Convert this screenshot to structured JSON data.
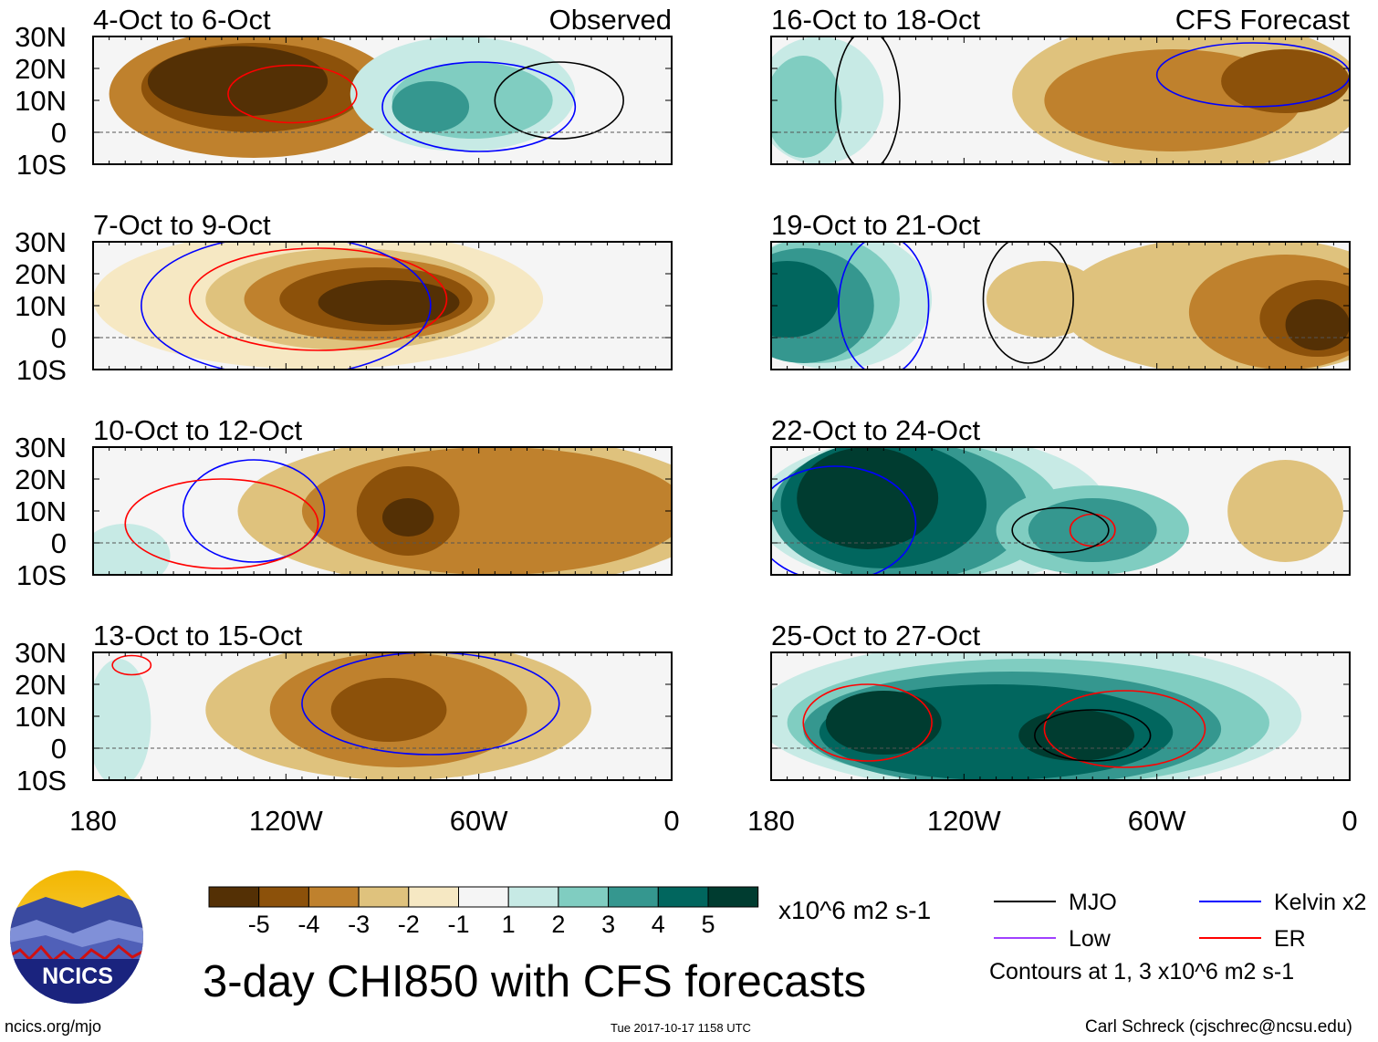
{
  "chart_data": {
    "type": "heatmap",
    "title": "3-day CHI850 with CFS forecasts",
    "units": "x10^6 m2 s-1",
    "column_labels": [
      "Observed",
      "CFS Forecast"
    ],
    "lat_ticks": [
      "30N",
      "20N",
      "10N",
      "0",
      "10S"
    ],
    "lon_ticks": [
      "180",
      "120W",
      "60W",
      "0"
    ],
    "lat_range": [
      -10,
      30
    ],
    "lon_range_west": [
      180,
      0
    ],
    "colorbar": {
      "ticks": [
        "-5",
        "-4",
        "-3",
        "-2",
        "-1",
        "1",
        "2",
        "3",
        "4",
        "5"
      ],
      "colors": [
        "#543005",
        "#8c510a",
        "#bf812d",
        "#dfc27d",
        "#f6e8c3",
        "#f5f5f5",
        "#c7eae5",
        "#80cdc1",
        "#35978f",
        "#01665e",
        "#003c30"
      ]
    },
    "legend": [
      {
        "name": "MJO",
        "color": "#000000"
      },
      {
        "name": "Kelvin x2",
        "color": "#0000ff"
      },
      {
        "name": "Low",
        "color": "#a040ff"
      },
      {
        "name": "ER",
        "color": "#ff0000"
      }
    ],
    "contour_note": "Contours at 1, 3 x10^6 m2 s-1",
    "panels": [
      {
        "title": "4-Oct to 6-Oct",
        "col": 0,
        "row": 0,
        "blobs": [
          [
            130,
            12,
            45,
            20,
            -3
          ],
          [
            130,
            14,
            35,
            14,
            -4
          ],
          [
            135,
            16,
            28,
            11,
            -5
          ],
          [
            65,
            12,
            35,
            18,
            1
          ],
          [
            62,
            10,
            25,
            12,
            2
          ],
          [
            75,
            8,
            12,
            8,
            3
          ]
        ],
        "contours": [
          [
            118,
            12,
            20,
            9,
            "ER"
          ],
          [
            60,
            8,
            30,
            14,
            "Kelvin"
          ],
          [
            35,
            10,
            20,
            12,
            "MJO"
          ]
        ]
      },
      {
        "title": "7-Oct to 9-Oct",
        "col": 0,
        "row": 1,
        "blobs": [
          [
            110,
            12,
            70,
            22,
            -1
          ],
          [
            100,
            12,
            45,
            16,
            -2
          ],
          [
            95,
            12,
            38,
            13,
            -3
          ],
          [
            92,
            12,
            30,
            10,
            -4
          ],
          [
            88,
            11,
            22,
            7,
            -5
          ]
        ],
        "contours": [
          [
            110,
            12,
            40,
            16,
            "ER"
          ],
          [
            120,
            10,
            45,
            22,
            "Kelvin"
          ]
        ]
      },
      {
        "title": "10-Oct to 12-Oct",
        "col": 0,
        "row": 2,
        "blobs": [
          [
            60,
            10,
            75,
            24,
            -2
          ],
          [
            55,
            10,
            60,
            20,
            -3
          ],
          [
            82,
            10,
            16,
            14,
            -4
          ],
          [
            82,
            8,
            8,
            6,
            -5
          ],
          [
            170,
            -4,
            14,
            10,
            1
          ]
        ],
        "contours": [
          [
            130,
            10,
            22,
            16,
            "Kelvin"
          ],
          [
            140,
            6,
            30,
            14,
            "ER"
          ]
        ]
      },
      {
        "title": "13-Oct to 15-Oct",
        "col": 0,
        "row": 3,
        "blobs": [
          [
            85,
            12,
            60,
            22,
            -2
          ],
          [
            85,
            12,
            40,
            18,
            -3
          ],
          [
            88,
            12,
            18,
            10,
            -4
          ],
          [
            172,
            8,
            10,
            20,
            1
          ]
        ],
        "contours": [
          [
            75,
            14,
            40,
            16,
            "Kelvin"
          ],
          [
            168,
            26,
            6,
            3,
            "ER"
          ]
        ]
      },
      {
        "title": "16-Oct to 18-Oct",
        "col": 1,
        "row": 0,
        "blobs": [
          [
            50,
            12,
            55,
            24,
            -2
          ],
          [
            55,
            10,
            40,
            16,
            -3
          ],
          [
            20,
            16,
            20,
            10,
            -4
          ],
          [
            165,
            10,
            20,
            20,
            1
          ],
          [
            170,
            8,
            12,
            16,
            2
          ]
        ],
        "contours": [
          [
            150,
            10,
            10,
            22,
            "MJO"
          ],
          [
            30,
            18,
            30,
            10,
            "Kelvin"
          ]
        ]
      },
      {
        "title": "19-Oct to 21-Oct",
        "col": 1,
        "row": 1,
        "blobs": [
          [
            35,
            10,
            55,
            22,
            -2
          ],
          [
            20,
            8,
            30,
            18,
            -3
          ],
          [
            10,
            6,
            18,
            12,
            -4
          ],
          [
            10,
            4,
            10,
            8,
            -5
          ],
          [
            95,
            12,
            18,
            12,
            -2
          ],
          [
            160,
            12,
            30,
            22,
            1
          ],
          [
            165,
            12,
            25,
            20,
            2
          ],
          [
            170,
            10,
            22,
            18,
            3
          ],
          [
            175,
            12,
            16,
            12,
            4
          ]
        ],
        "contours": [
          [
            145,
            10,
            14,
            22,
            "Kelvin"
          ],
          [
            100,
            12,
            14,
            20,
            "MJO"
          ]
        ]
      },
      {
        "title": "22-Oct to 24-Oct",
        "col": 1,
        "row": 2,
        "blobs": [
          [
            130,
            10,
            55,
            24,
            1
          ],
          [
            135,
            10,
            45,
            22,
            2
          ],
          [
            140,
            10,
            40,
            22,
            3
          ],
          [
            145,
            12,
            32,
            20,
            4
          ],
          [
            150,
            14,
            22,
            16,
            5
          ],
          [
            80,
            4,
            30,
            14,
            2
          ],
          [
            80,
            4,
            20,
            10,
            3
          ],
          [
            20,
            10,
            18,
            16,
            -2
          ]
        ],
        "contours": [
          [
            80,
            4,
            7,
            5,
            "ER"
          ],
          [
            160,
            6,
            25,
            18,
            "Kelvin"
          ],
          [
            90,
            4,
            15,
            7,
            "MJO"
          ]
        ]
      },
      {
        "title": "25-Oct to 27-Oct",
        "col": 1,
        "row": 3,
        "blobs": [
          [
            100,
            10,
            85,
            24,
            1
          ],
          [
            100,
            8,
            75,
            20,
            2
          ],
          [
            105,
            6,
            65,
            18,
            3
          ],
          [
            110,
            5,
            55,
            15,
            4
          ],
          [
            85,
            4,
            18,
            8,
            5
          ],
          [
            145,
            8,
            18,
            10,
            5
          ]
        ],
        "contours": [
          [
            150,
            8,
            20,
            12,
            "ER"
          ],
          [
            70,
            6,
            25,
            12,
            "ER"
          ],
          [
            80,
            4,
            18,
            8,
            "MJO"
          ]
        ]
      }
    ]
  },
  "footer": {
    "logo_text": "NCICS",
    "url": "ncics.org/mjo",
    "timestamp": "Tue 2017-10-17 1158 UTC",
    "author": "Carl Schreck (cjschrec@ncsu.edu)"
  }
}
